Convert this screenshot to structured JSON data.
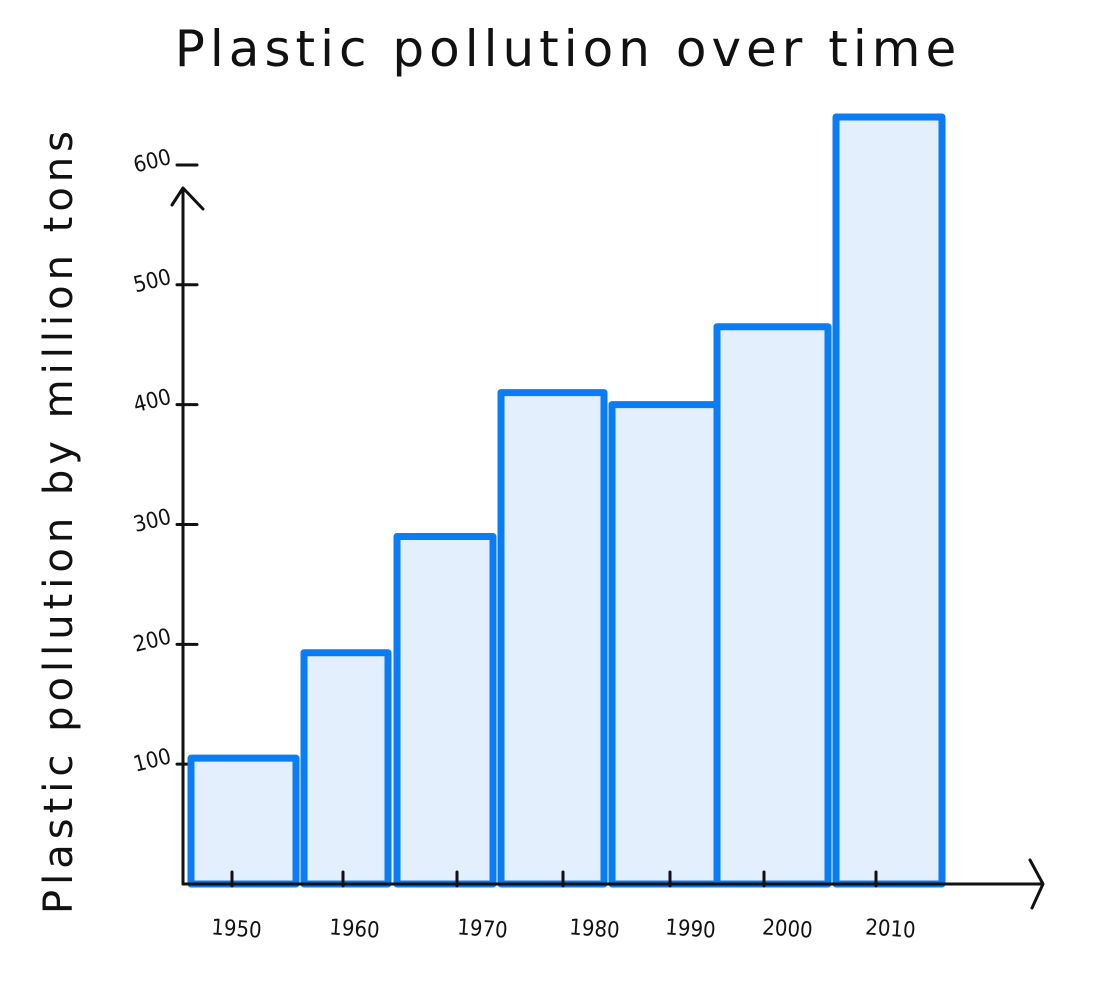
{
  "chart_data": {
    "type": "bar",
    "title": "Plastic pollution over time",
    "xlabel": "",
    "ylabel": "Plastic pollution by million tons",
    "categories": [
      "1950",
      "1960",
      "1970",
      "1980",
      "1990",
      "2000",
      "2010"
    ],
    "values": [
      105,
      193,
      290,
      410,
      400,
      465,
      640
    ],
    "y_ticks": [
      100,
      200,
      300,
      400,
      500,
      600
    ],
    "y_tick_labels": [
      "100",
      "200",
      "300",
      "400",
      "500",
      "600"
    ],
    "ylim": [
      0,
      640
    ],
    "grid": false,
    "legend": "none",
    "colors": {
      "bar_fill": "#e3effc",
      "bar_stroke": "#0a7cf5",
      "axis": "#111111"
    }
  }
}
